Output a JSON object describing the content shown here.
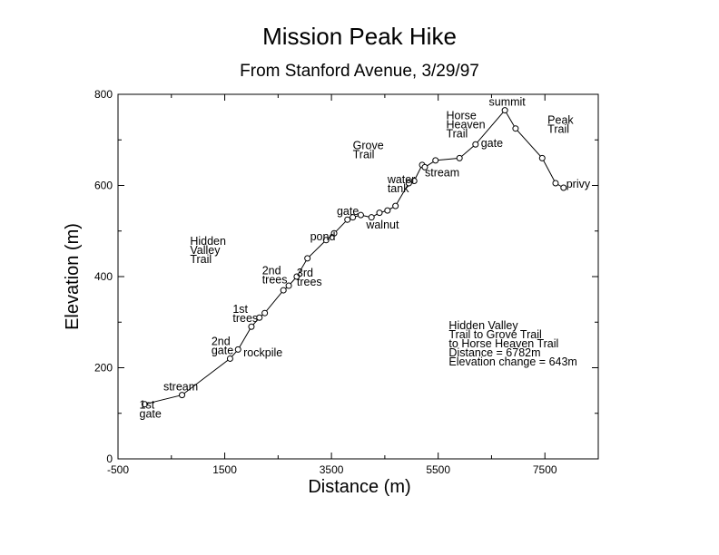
{
  "chart_data": {
    "type": "line",
    "title": "Mission Peak Hike",
    "subtitle": "From Stanford Avenue, 3/29/97",
    "xlabel": "Distance (m)",
    "ylabel": "Elevation (m)",
    "xlim": [
      -500,
      8500
    ],
    "ylim": [
      0,
      800
    ],
    "xticks": [
      "-500",
      "1500",
      "3500",
      "5500",
      "7500"
    ],
    "xtick_values": [
      -500,
      1500,
      3500,
      5500,
      7500
    ],
    "yticks": [
      "0",
      "200",
      "400",
      "600",
      "800"
    ],
    "ytick_values": [
      0,
      200,
      400,
      600,
      800
    ],
    "grid": false,
    "series": [
      {
        "x": [
          0,
          700,
          1600,
          1750,
          2000,
          2150,
          2250,
          2600,
          2700,
          2850,
          3050,
          3400,
          3550,
          3800,
          3900,
          4050,
          4250,
          4400,
          4550,
          4700,
          4950,
          5050,
          5200,
          5250,
          5450,
          5900,
          6200,
          6750,
          6950,
          7450,
          7700,
          7850
        ],
        "y": [
          120,
          140,
          220,
          240,
          290,
          310,
          320,
          370,
          380,
          400,
          440,
          480,
          495,
          525,
          530,
          535,
          530,
          540,
          545,
          555,
          605,
          610,
          645,
          640,
          655,
          660,
          690,
          765,
          725,
          660,
          605,
          595
        ]
      }
    ],
    "annotations": [
      {
        "lines": [
          "1st",
          "gate"
        ],
        "x": -100,
        "y": 110,
        "anchor": "start"
      },
      {
        "lines": [
          "stream"
        ],
        "x": 350,
        "y": 150,
        "anchor": "start"
      },
      {
        "lines": [
          "2nd",
          "gate"
        ],
        "x": 1250,
        "y": 250,
        "anchor": "start"
      },
      {
        "lines": [
          "rockpile"
        ],
        "x": 1850,
        "y": 225,
        "anchor": "start"
      },
      {
        "lines": [
          "1st",
          "trees"
        ],
        "x": 1650,
        "y": 320,
        "anchor": "start"
      },
      {
        "lines": [
          "2nd",
          "trees"
        ],
        "x": 2200,
        "y": 405,
        "anchor": "start"
      },
      {
        "lines": [
          "3rd",
          "trees"
        ],
        "x": 2850,
        "y": 400,
        "anchor": "start"
      },
      {
        "lines": [
          "Hidden",
          "Valley",
          "Trail"
        ],
        "x": 850,
        "y": 470,
        "anchor": "start"
      },
      {
        "lines": [
          "pond"
        ],
        "x": 3100,
        "y": 480,
        "anchor": "start"
      },
      {
        "lines": [
          "gate"
        ],
        "x": 3600,
        "y": 535,
        "anchor": "start"
      },
      {
        "lines": [
          "walnut"
        ],
        "x": 4150,
        "y": 505,
        "anchor": "start"
      },
      {
        "lines": [
          "Grove",
          "Trail"
        ],
        "x": 3900,
        "y": 680,
        "anchor": "start"
      },
      {
        "lines": [
          "water",
          "tank"
        ],
        "x": 4550,
        "y": 605,
        "anchor": "start"
      },
      {
        "lines": [
          "stream"
        ],
        "x": 5250,
        "y": 620,
        "anchor": "start"
      },
      {
        "lines": [
          "Horse",
          "Heaven",
          "Trail"
        ],
        "x": 5650,
        "y": 745,
        "anchor": "start"
      },
      {
        "lines": [
          "gate"
        ],
        "x": 6300,
        "y": 685,
        "anchor": "start"
      },
      {
        "lines": [
          "summit"
        ],
        "x": 6450,
        "y": 775,
        "anchor": "start"
      },
      {
        "lines": [
          "Peak",
          "Trail"
        ],
        "x": 7550,
        "y": 735,
        "anchor": "start"
      },
      {
        "lines": [
          "privy"
        ],
        "x": 7900,
        "y": 595,
        "anchor": "start"
      }
    ],
    "info_box": {
      "lines": [
        "Hidden Valley",
        "Trail to Grove Trail",
        "to Horse Heaven Trail",
        "Distance = 6782m",
        "Elevation change = 643m"
      ],
      "x": 5700,
      "y": 285
    }
  }
}
